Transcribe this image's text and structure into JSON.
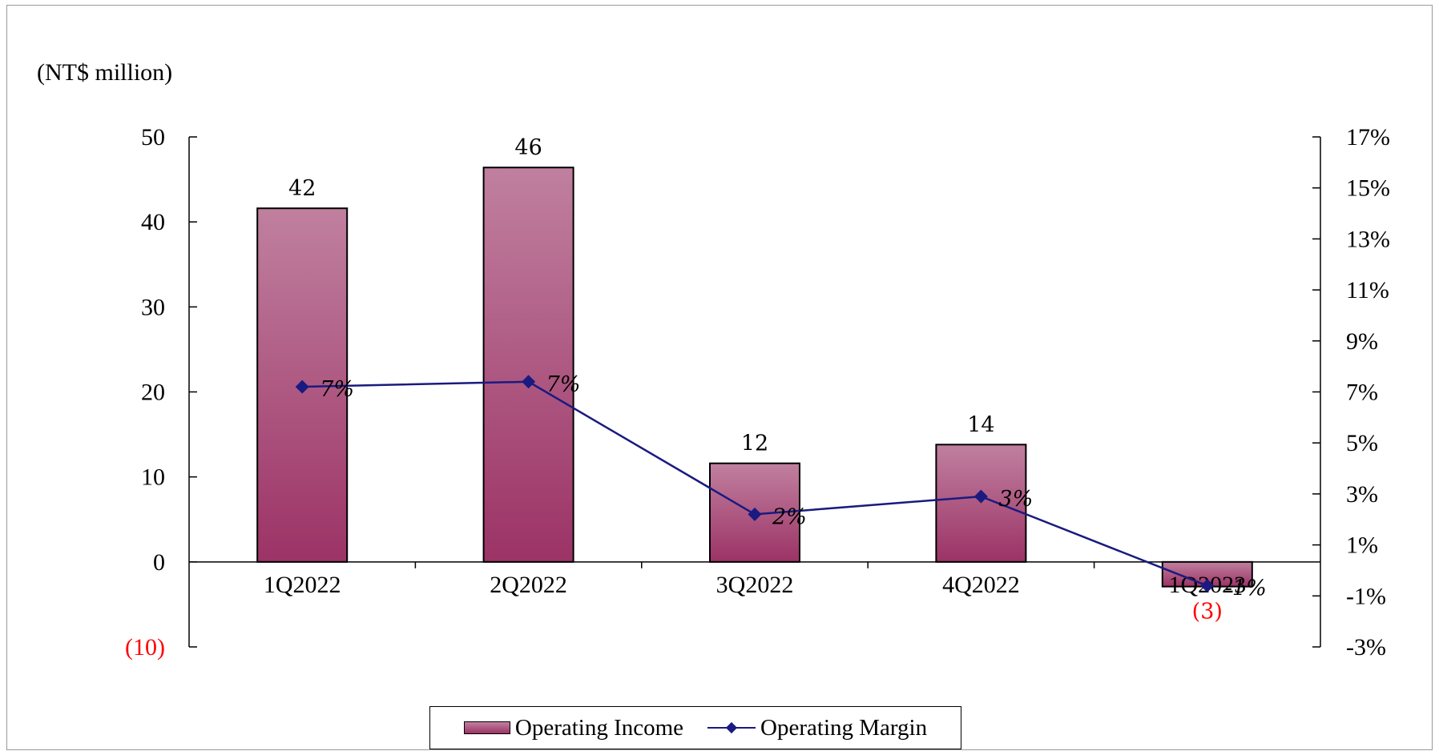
{
  "chart_data": {
    "type": "bar",
    "unit_label": "(NT$ million)",
    "categories": [
      "1Q2022",
      "2Q2022",
      "3Q2022",
      "4Q2022",
      "1Q2023"
    ],
    "series": [
      {
        "name": "Operating Income",
        "type": "bar",
        "axis": "left",
        "values": [
          41.6,
          46.4,
          11.6,
          13.8,
          -2.9
        ],
        "labels": [
          "42",
          "46",
          "12",
          "14",
          "(3)"
        ]
      },
      {
        "name": "Operating Margin",
        "type": "line",
        "axis": "right",
        "values": [
          7.2,
          7.4,
          2.2,
          2.9,
          -0.6
        ],
        "labels": [
          "7%",
          "7%",
          "2%",
          "3%",
          "-1%"
        ]
      }
    ],
    "y_left": {
      "ylim": [
        -10,
        50
      ],
      "ticks": [
        50,
        40,
        30,
        20,
        10,
        0,
        -10
      ],
      "tick_labels": [
        "50",
        "40",
        "30",
        "20",
        "10",
        "0",
        "(10)"
      ]
    },
    "y_right": {
      "ylim": [
        -3,
        17
      ],
      "ticks": [
        17,
        15,
        13,
        11,
        9,
        7,
        5,
        3,
        1,
        -1,
        -3
      ],
      "tick_labels": [
        "17%",
        "15%",
        "13%",
        "11%",
        "9%",
        "7%",
        "5%",
        "3%",
        "1%",
        "-1%",
        "-3%"
      ]
    },
    "grid": false,
    "legend_position": "bottom-center",
    "colors": {
      "bar_top": "#c0809f",
      "bar_bottom": "#9c3366",
      "line": "#1a1a80",
      "negative_label": "#ff0000"
    }
  }
}
